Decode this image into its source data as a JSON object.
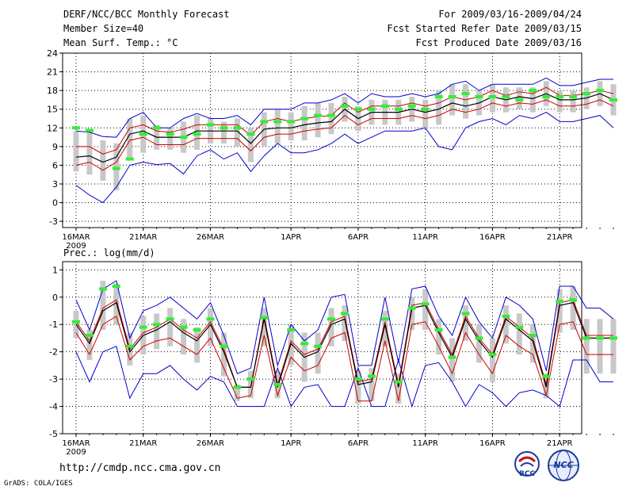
{
  "header": {
    "title": "DERF/NCC/BCC Monthly Forecast",
    "member_size": "Member Size=40",
    "variable": "Mean Surf. Temp.: °C",
    "period": "For 2009/03/16-2009/04/24",
    "started": "Fcst Started Refer Date 2009/03/15",
    "produced": "Fcst Produced Date 2009/03/16"
  },
  "footer": {
    "url": "http://cmdp.ncc.cma.gov.cn",
    "grads": "GrADS: COLA/IGES",
    "logo_bcc": "BCC",
    "logo_ncc": "NCC"
  },
  "colors": {
    "envelope": "#0000cc",
    "spread": "#cc0000",
    "mean": "#000000",
    "box": "#c8c8c8",
    "obs": "#33ee33"
  },
  "chart_data": [
    {
      "type": "line",
      "title": "Mean Surf. Temp.: °C",
      "ylim": [
        -4,
        24
      ],
      "yticks": [
        -3,
        0,
        3,
        6,
        9,
        12,
        15,
        18,
        21,
        24
      ],
      "x_tick_labels": [
        {
          "day": 0,
          "label": "16MAR"
        },
        {
          "day": 5,
          "label": "21MAR"
        },
        {
          "day": 10,
          "label": "26MAR"
        },
        {
          "day": 16,
          "label": "1APR"
        },
        {
          "day": 21,
          "label": "6APR"
        },
        {
          "day": 26,
          "label": "11APR"
        },
        {
          "day": 31,
          "label": "16APR"
        },
        {
          "day": 36,
          "label": "21APR"
        }
      ],
      "year_label": "2009",
      "series": [
        {
          "name": "max",
          "values": [
            2.8,
            1.2,
            0,
            2.5,
            6,
            6.5,
            6.1,
            6.3,
            4.6,
            7.5,
            8.5,
            7,
            8,
            5,
            7.5,
            9.5,
            8,
            8,
            8.5,
            9.5,
            11,
            9.5,
            10.5,
            11.5,
            11.5,
            11.5,
            12,
            9,
            8.5,
            12,
            13,
            13.5,
            12.5,
            14,
            13.5,
            14.5,
            13,
            13,
            13.5,
            14,
            12
          ]
        },
        {
          "name": "p_high",
          "values": [
            9,
            9,
            7.8,
            8.5,
            12,
            12.5,
            11.5,
            11.3,
            11.8,
            12.5,
            12.5,
            12.5,
            12.5,
            10.8,
            13,
            13.5,
            13,
            13.5,
            13.8,
            14,
            16,
            14.5,
            15.5,
            15.5,
            15.5,
            16,
            15.5,
            16,
            17,
            16.5,
            17,
            18,
            17.2,
            17.8,
            17.5,
            18.5,
            17.2,
            17.2,
            17.5,
            18,
            17.5
          ]
        },
        {
          "name": "mean",
          "values": [
            7.3,
            7.5,
            6.5,
            7.3,
            11,
            11.5,
            10.5,
            10.5,
            10.5,
            11.5,
            11.5,
            11.5,
            11.5,
            9.5,
            11.8,
            12,
            12,
            12.5,
            12.8,
            13,
            15,
            13.5,
            14.5,
            14.5,
            14.5,
            15,
            14.5,
            15,
            16,
            15.5,
            16,
            17,
            16.5,
            17,
            16.7,
            17.5,
            16.5,
            16.5,
            16.8,
            17.5,
            16.5
          ]
        },
        {
          "name": "p_low",
          "values": [
            6,
            6.5,
            5.2,
            6.5,
            10,
            10.5,
            9.3,
            9.3,
            9.3,
            10.3,
            10.3,
            10.3,
            10.3,
            8.3,
            10.5,
            11,
            11,
            11.5,
            11.8,
            12,
            14,
            12.5,
            13.5,
            13.5,
            13.5,
            14,
            13.5,
            14,
            15,
            14.5,
            15,
            16,
            15.5,
            16,
            15.8,
            16.5,
            15.5,
            15.5,
            15.8,
            16.5,
            15.5
          ]
        },
        {
          "name": "min",
          "values": [
            11.5,
            11.3,
            10.6,
            10.5,
            13.5,
            14.5,
            12,
            12,
            13.5,
            14.3,
            13.5,
            13.5,
            14,
            12.5,
            15,
            15,
            15,
            16,
            16,
            16.5,
            17.5,
            16,
            17.5,
            17,
            17,
            17.5,
            17,
            17.5,
            19,
            19.5,
            18,
            19,
            19,
            19,
            19,
            20,
            18.8,
            18.8,
            19.3,
            19.8,
            19.8
          ]
        },
        {
          "name": "obs",
          "values": [
            12,
            11.6,
            null,
            5.5,
            7,
            11,
            12,
            11,
            10.5,
            11,
            12.5,
            12,
            12,
            11,
            13,
            13,
            13,
            13.5,
            14,
            14,
            15.5,
            15,
            15,
            15.5,
            15,
            15.5,
            15,
            17,
            17,
            17.5,
            17,
            17,
            17,
            16.5,
            18,
            17,
            17,
            17,
            17.5,
            18,
            16.5
          ]
        },
        {
          "name": "box_high",
          "values": [
            11.5,
            11.5,
            10,
            9.5,
            13.5,
            14,
            12.5,
            12,
            13,
            14,
            13.5,
            13,
            13.5,
            12,
            14.5,
            15,
            14.5,
            15.5,
            16,
            16,
            17,
            15.5,
            16.5,
            16.5,
            16.5,
            17,
            16.5,
            18,
            19,
            19,
            18,
            19,
            18.5,
            18.5,
            18.5,
            19.5,
            18,
            18,
            18.5,
            19.5,
            19
          ]
        },
        {
          "name": "box_low",
          "values": [
            5,
            4.5,
            3.5,
            2,
            7,
            8,
            8.5,
            8.5,
            8,
            8.5,
            9.5,
            9.5,
            9,
            6.5,
            9,
            9.5,
            10,
            10,
            10.5,
            11,
            13,
            11.5,
            12.5,
            12.5,
            12.5,
            13,
            12,
            12.5,
            14,
            13.5,
            14,
            14.5,
            14.5,
            15,
            14.5,
            15.5,
            14.5,
            14.5,
            15,
            15.5,
            14
          ]
        }
      ]
    },
    {
      "type": "line",
      "title": "Prec.: log(mm/d)",
      "ylim": [
        -5,
        1.3
      ],
      "yticks": [
        -5,
        -4,
        -3,
        -2,
        -1,
        0,
        1
      ],
      "x_tick_labels": [
        {
          "day": 0,
          "label": "16MAR"
        },
        {
          "day": 5,
          "label": "21MAR"
        },
        {
          "day": 10,
          "label": "26MAR"
        },
        {
          "day": 16,
          "label": "1APR"
        },
        {
          "day": 21,
          "label": "6APR"
        },
        {
          "day": 26,
          "label": "11APR"
        },
        {
          "day": 31,
          "label": "16APR"
        },
        {
          "day": 36,
          "label": "21APR"
        }
      ],
      "year_label": "2009",
      "series": [
        {
          "name": "max",
          "values": [
            -2,
            -3.1,
            -2,
            -1.8,
            -3.7,
            -2.8,
            -2.8,
            -2.5,
            -3,
            -3.4,
            -2.9,
            -3.1,
            -4,
            -4,
            -4,
            -2.6,
            -4,
            -3.3,
            -3.2,
            -4,
            -4,
            -2.6,
            -4,
            -4,
            -2.3,
            -4,
            -2.5,
            -2.4,
            -3.1,
            -4,
            -3.2,
            -3.5,
            -4,
            -3.5,
            -3.4,
            -3.6,
            -4,
            -2.3,
            -2.3,
            -3.1,
            -3.1
          ]
        },
        {
          "name": "p_high",
          "values": [
            -0.9,
            -1.6,
            -0.4,
            -0.1,
            -1.9,
            -1.3,
            -1.1,
            -0.8,
            -1.2,
            -1.5,
            -0.9,
            -1.9,
            -3.3,
            -3.3,
            -0.7,
            -3.2,
            -1.6,
            -2.1,
            -1.9,
            -0.9,
            -0.7,
            -3.1,
            -3,
            -0.9,
            -3.2,
            -0.3,
            -0.2,
            -1.2,
            -2.1,
            -0.7,
            -1.5,
            -2.1,
            -0.7,
            -1.1,
            -1.5,
            -3.2,
            -0.2,
            -0.1,
            -1.4,
            -1.4,
            -1.4
          ]
        },
        {
          "name": "mean",
          "values": [
            -1,
            -1.7,
            -0.5,
            -0.2,
            -2,
            -1.4,
            -1.2,
            -0.9,
            -1.3,
            -1.6,
            -1,
            -2,
            -3.3,
            -3.3,
            -0.8,
            -3.3,
            -1.7,
            -2.2,
            -2,
            -1,
            -0.8,
            -3.2,
            -3.1,
            -1,
            -3.3,
            -0.4,
            -0.3,
            -1.3,
            -2.2,
            -0.8,
            -1.6,
            -2.2,
            -0.8,
            -1.2,
            -1.6,
            -3.3,
            -0.3,
            -0.2,
            -1.5,
            -1.5,
            -1.5
          ]
        },
        {
          "name": "p_low",
          "values": [
            -1.3,
            -2.1,
            -1,
            -0.7,
            -2.3,
            -1.8,
            -1.6,
            -1.5,
            -1.8,
            -2.1,
            -1.5,
            -2.6,
            -3.7,
            -3.6,
            -1.4,
            -3.6,
            -2.2,
            -2.7,
            -2.5,
            -1.5,
            -1.3,
            -3.8,
            -3.8,
            -1.6,
            -3.8,
            -1,
            -0.9,
            -1.8,
            -2.8,
            -1.3,
            -2.1,
            -2.8,
            -1.4,
            -1.8,
            -2.1,
            -3.6,
            -1,
            -0.9,
            -2.1,
            -2.1,
            -2.1
          ]
        },
        {
          "name": "min",
          "values": [
            -0.1,
            -1.2,
            0.3,
            0.6,
            -1.5,
            -0.5,
            -0.3,
            0,
            -0.4,
            -0.8,
            -0.2,
            -1.4,
            -2.8,
            -2.6,
            0,
            -2.5,
            -1,
            -1.6,
            -1.2,
            0,
            0.1,
            -2.5,
            -2.5,
            0,
            -2.4,
            0.3,
            0.4,
            -0.7,
            -1.4,
            0,
            -0.9,
            -1.5,
            0,
            -0.3,
            -0.8,
            -2.7,
            0.4,
            0.4,
            -0.4,
            -0.4,
            -0.8
          ]
        },
        {
          "name": "obs",
          "values": [
            -0.9,
            -1.4,
            0.3,
            0.4,
            -1.8,
            -1.1,
            -1,
            -0.8,
            -1.1,
            -1.2,
            -0.8,
            -1.8,
            -3.3,
            -3,
            -0.75,
            -3.2,
            -1.2,
            -1.7,
            -1.8,
            -0.8,
            -0.6,
            -3,
            -2.9,
            -0.8,
            -3.1,
            -0.4,
            -0.25,
            -1.2,
            -2.2,
            -0.6,
            -1.5,
            -2.1,
            -0.7,
            -1.1,
            -1.4,
            -2.9,
            -0.15,
            -0.1,
            -1.5,
            -1.5,
            -1.5
          ]
        },
        {
          "name": "box_high",
          "values": [
            -0.5,
            -1.2,
            0.6,
            0.5,
            -1.3,
            -0.7,
            -0.6,
            -0.4,
            -0.8,
            -1.1,
            -0.4,
            -1.3,
            -3.2,
            -2.7,
            -0.4,
            -2.7,
            -1,
            -1.3,
            -1.3,
            -0.4,
            -0.3,
            -2.7,
            -2.6,
            -0.5,
            -2.8,
            0,
            0.3,
            -0.8,
            -1.5,
            -0.3,
            -1,
            -1.5,
            -0.3,
            -0.6,
            -1,
            -2.8,
            0.3,
            0.4,
            -0.8,
            -0.8,
            -0.8
          ]
        },
        {
          "name": "box_low",
          "values": [
            -1.5,
            -2.3,
            -1.2,
            -1,
            -2.5,
            -2.1,
            -1.9,
            -1.8,
            -2.1,
            -2.4,
            -1.8,
            -2.9,
            -3.8,
            -3.7,
            -1.8,
            -3.7,
            -2.5,
            -3.1,
            -2.8,
            -1.8,
            -1.6,
            -3.9,
            -3.8,
            -1.8,
            -3.9,
            -1.2,
            -1.2,
            -2.1,
            -3.1,
            -1.6,
            -2.4,
            -3.1,
            -1.7,
            -2.1,
            -2.4,
            -3.7,
            -1.3,
            -1.2,
            -2.8,
            -2.8,
            -2.8
          ]
        }
      ]
    }
  ]
}
